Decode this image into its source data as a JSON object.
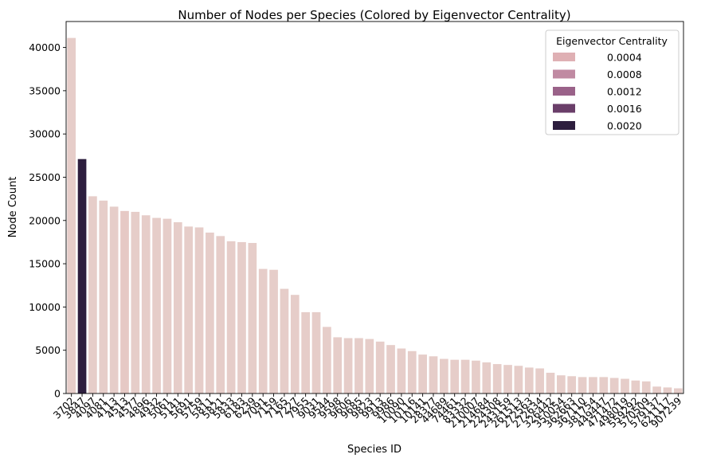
{
  "chart_data": {
    "type": "bar",
    "title": "Number of Nodes per Species (Colored by Eigenvector Centrality)",
    "xlabel": "Species ID",
    "ylabel": "Node Count",
    "ylim": [
      0,
      43000
    ],
    "yticks": [
      0,
      5000,
      10000,
      15000,
      20000,
      25000,
      30000,
      35000,
      40000
    ],
    "grid": false,
    "legend": {
      "title": "Eigenvector Centrality",
      "placement": "top-right",
      "entries": [
        {
          "label": "0.0004",
          "color": "#dfb0b4"
        },
        {
          "label": "0.0008",
          "color": "#c08aa2"
        },
        {
          "label": "0.0012",
          "color": "#9a6289"
        },
        {
          "label": "0.0016",
          "color": "#6a3e69"
        },
        {
          "label": "0.0020",
          "color": "#2d1e3e"
        }
      ]
    },
    "categories": [
      "3702",
      "3847",
      "4097",
      "4081",
      "4113",
      "4513",
      "4577",
      "4896",
      "4932",
      "5061",
      "5141",
      "5691",
      "5759",
      "5811",
      "5821",
      "5833",
      "6183",
      "6239",
      "7091",
      "7159",
      "7165",
      "7227",
      "7955",
      "9031",
      "9544",
      "9598",
      "9606",
      "9685",
      "9823",
      "9913",
      "9986",
      "10090",
      "10116",
      "10141",
      "28377",
      "44689",
      "74461",
      "83332",
      "210007",
      "214684",
      "224308",
      "243159",
      "261513",
      "272563",
      "272634",
      "326442",
      "350054",
      "362663",
      "367110",
      "381754",
      "449447",
      "471472",
      "498019",
      "559292",
      "570509",
      "579137",
      "621117",
      "907239"
    ],
    "values": [
      41100,
      27100,
      22800,
      22300,
      21600,
      21100,
      21000,
      20600,
      20300,
      20200,
      19800,
      19300,
      19200,
      18600,
      18200,
      17600,
      17500,
      17400,
      14400,
      14300,
      12100,
      11400,
      9400,
      9400,
      7700,
      6500,
      6400,
      6400,
      6300,
      6000,
      5600,
      5200,
      4900,
      4500,
      4300,
      4000,
      3900,
      3900,
      3800,
      3600,
      3400,
      3300,
      3200,
      3000,
      2900,
      2400,
      2100,
      2000,
      1900,
      1900,
      1900,
      1800,
      1700,
      1500,
      1400,
      800,
      700,
      600
    ],
    "centrality_color": [
      "#e6cdc9",
      "#2d1e3e",
      "#e6cdc9",
      "#e6cdc9",
      "#e6cdc9",
      "#e6c9c5",
      "#e6cdc9",
      "#e6cdc9",
      "#e6cdc9",
      "#e6cdc9",
      "#e6cdc9",
      "#e6cdc9",
      "#e6cdc9",
      "#e6cdc9",
      "#e6cdc9",
      "#e6cdc9",
      "#e6cdc9",
      "#e6cdc9",
      "#e6cdc9",
      "#e6cdc9",
      "#e6cdc9",
      "#e6cdc9",
      "#e6cdc9",
      "#e6cdc9",
      "#e6cdc9",
      "#e6cdc9",
      "#e6cdc9",
      "#e6cdc9",
      "#e6cdc9",
      "#e6cdc9",
      "#e6cdc9",
      "#e6cdc9",
      "#e6cdc9",
      "#e6cdc9",
      "#e6cdc9",
      "#e6cdc9",
      "#e6cdc9",
      "#e6cdc9",
      "#e6cdc9",
      "#e6cdc9",
      "#e6cdc9",
      "#e6cdc9",
      "#e6cdc9",
      "#e6cdc9",
      "#e6cdc9",
      "#e6cdc9",
      "#e6cdc9",
      "#e6cdc9",
      "#e6cdc9",
      "#e6cdc9",
      "#e6cdc9",
      "#e6cdc9",
      "#e6cdc9",
      "#e6cdc9",
      "#e6cdc9",
      "#e6cdc9",
      "#e6cdc9",
      "#e6cdc9"
    ]
  }
}
